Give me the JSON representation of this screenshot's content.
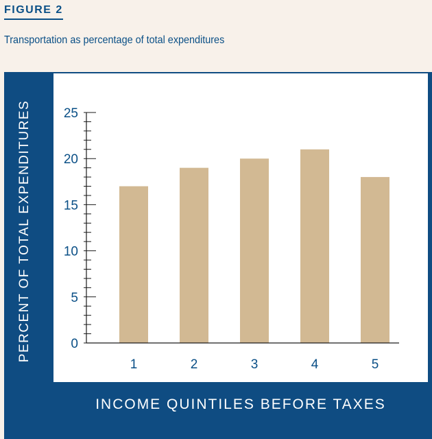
{
  "figure_label": "FIGURE 2",
  "chart_data": {
    "type": "bar",
    "title": "Transportation as percentage of total expenditures",
    "xlabel": "INCOME QUINTILES BEFORE TAXES",
    "ylabel": "PERCENT OF TOTAL EXPENDITURES",
    "categories": [
      "1",
      "2",
      "3",
      "4",
      "5"
    ],
    "values": [
      17,
      19,
      20,
      21,
      18
    ],
    "ylim": [
      0,
      25
    ],
    "yticks": [
      "0",
      "5",
      "10",
      "15",
      "20",
      "25"
    ],
    "grid": false,
    "bar_color": "#d2b993",
    "axis_color": "#1a1a1a",
    "tick_label_color": "#0a4f86"
  }
}
